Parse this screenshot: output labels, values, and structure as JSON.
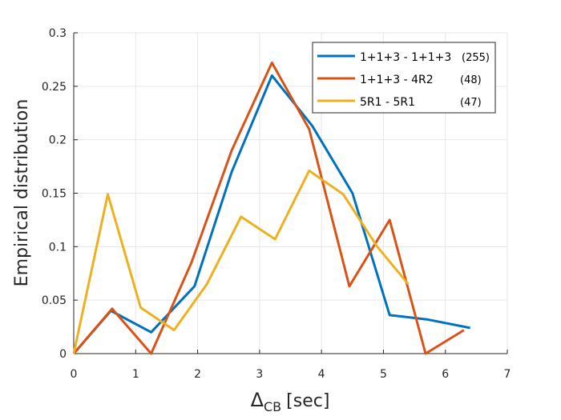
{
  "chart_data": {
    "type": "line",
    "title": "",
    "xlabel": "Δ",
    "xlabel_sub": "CB",
    "xlabel_unit": "[sec]",
    "ylabel": "Empirical distribution",
    "xlim": [
      0,
      7
    ],
    "ylim": [
      0,
      0.3
    ],
    "xticks": [
      0,
      1,
      2,
      3,
      4,
      5,
      6,
      7
    ],
    "xtick_labels": [
      "0",
      "1",
      "2",
      "3",
      "4",
      "5",
      "6",
      "7"
    ],
    "yticks": [
      0,
      0.05,
      0.1,
      0.15,
      0.2,
      0.25,
      0.3
    ],
    "ytick_labels": [
      "0",
      "0.05",
      "0.1",
      "0.15",
      "0.2",
      "0.25",
      "0.3"
    ],
    "grid": true,
    "legend_position": "top-right",
    "series": [
      {
        "name": "1+1+3 - 1+1+3",
        "count": "(255)",
        "color": "#0072BD",
        "x": [
          0,
          0.6,
          1.25,
          1.95,
          2.55,
          3.2,
          3.85,
          4.5,
          5.1,
          5.7,
          6.4
        ],
        "y": [
          0,
          0.04,
          0.02,
          0.063,
          0.17,
          0.26,
          0.213,
          0.15,
          0.036,
          0.032,
          0.024
        ]
      },
      {
        "name": "1+1+3 - 4R2",
        "count": "(48)",
        "color": "#D95319",
        "x": [
          0,
          0.62,
          1.25,
          1.9,
          2.55,
          3.2,
          3.8,
          4.45,
          5.1,
          5.68,
          6.3
        ],
        "y": [
          0,
          0.042,
          0,
          0.085,
          0.19,
          0.272,
          0.21,
          0.063,
          0.125,
          0,
          0.022
        ]
      },
      {
        "name": "5R1 - 5R1",
        "count": "(47)",
        "color": "#EDB120",
        "x": [
          0,
          0.55,
          1.08,
          1.62,
          2.15,
          2.7,
          3.25,
          3.8,
          4.35,
          4.9,
          5.4
        ],
        "y": [
          0,
          0.149,
          0.043,
          0.022,
          0.065,
          0.128,
          0.107,
          0.171,
          0.149,
          0.1,
          0.065
        ]
      }
    ]
  }
}
